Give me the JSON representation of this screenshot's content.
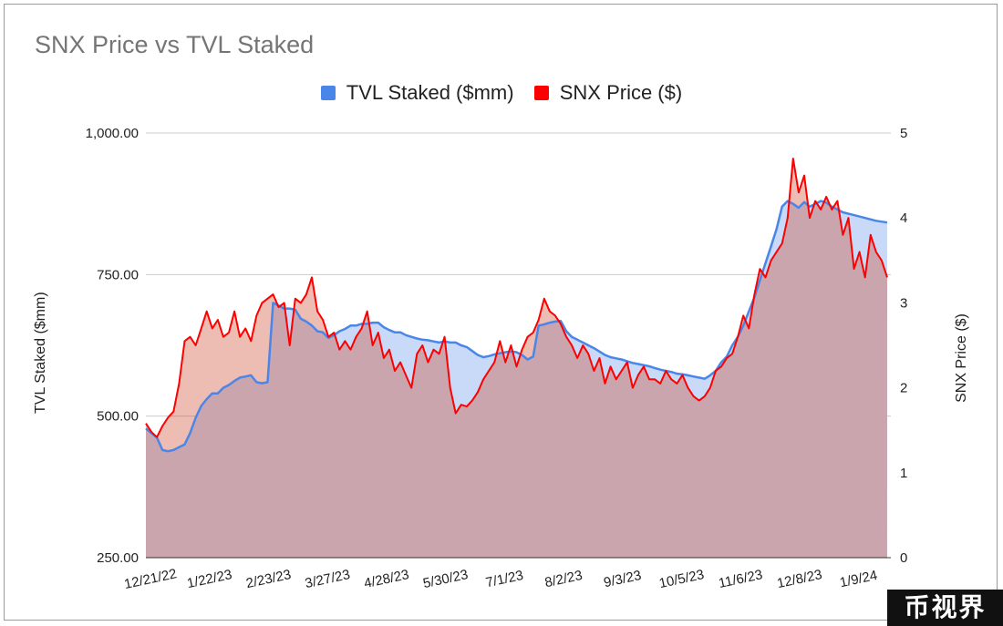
{
  "chart_data": {
    "type": "area",
    "title": "SNX Price vs TVL Staked",
    "x_ticks": [
      "12/21/22",
      "1/22/23",
      "2/23/23",
      "3/27/23",
      "4/28/23",
      "5/30/23",
      "7/1/23",
      "8/2/23",
      "9/3/23",
      "10/5/23",
      "11/6/23",
      "12/8/23",
      "1/9/24"
    ],
    "x_range": [
      "12/21/22",
      "1/29/24"
    ],
    "y_left": {
      "label": "TVL Staked ($mm)",
      "ticks": [
        "1,000.00",
        "750.00",
        "500.00",
        "250.00"
      ],
      "range": [
        250,
        1000
      ]
    },
    "y_right": {
      "label": "SNX Price ($)",
      "ticks": [
        "5",
        "4",
        "3",
        "2",
        "1",
        "0"
      ],
      "range": [
        0,
        5
      ]
    },
    "grid": true,
    "legend_position": "top",
    "series": [
      {
        "name": "TVL Staked ($mm)",
        "axis": "left",
        "color": "#4a86e8",
        "fill": "#c9daf8",
        "x": [
          0,
          3,
          6,
          9,
          12,
          15,
          18,
          21,
          24,
          27,
          30,
          33,
          36,
          39,
          42,
          45,
          48,
          51,
          54,
          57,
          60,
          63,
          66,
          69,
          72,
          75,
          78,
          81,
          84,
          87,
          90,
          93,
          96,
          99,
          102,
          105,
          108,
          111,
          114,
          117,
          120,
          123,
          126,
          129,
          132,
          135,
          138,
          141,
          144,
          147,
          150,
          153,
          156,
          159,
          162,
          165,
          168,
          171,
          174,
          177,
          180,
          183,
          186,
          189,
          192,
          195,
          198,
          201,
          204,
          207,
          210,
          213,
          216,
          219,
          222,
          225,
          228,
          231,
          234,
          237,
          240,
          243,
          246,
          249,
          252,
          255,
          258,
          261,
          264,
          267,
          270,
          273,
          276,
          279,
          282,
          285,
          288,
          291,
          294,
          297,
          300,
          303,
          306,
          309,
          312,
          315,
          318,
          321,
          324,
          327,
          330,
          333,
          336,
          339,
          342,
          345,
          348,
          351,
          354,
          357,
          360,
          363,
          366,
          369,
          372,
          375,
          378,
          384,
          390,
          396,
          402
        ],
        "values": [
          478,
          470,
          462,
          440,
          438,
          440,
          445,
          450,
          470,
          497,
          518,
          530,
          540,
          540,
          550,
          555,
          562,
          568,
          570,
          572,
          560,
          558,
          560,
          700,
          695,
          690,
          690,
          688,
          672,
          667,
          660,
          650,
          648,
          638,
          643,
          650,
          654,
          660,
          660,
          663,
          663,
          665,
          665,
          657,
          652,
          648,
          648,
          643,
          640,
          637,
          635,
          634,
          632,
          630,
          632,
          630,
          630,
          625,
          622,
          615,
          608,
          604,
          606,
          609,
          611,
          613,
          614,
          613,
          608,
          600,
          605,
          660,
          662,
          665,
          667,
          668,
          650,
          640,
          635,
          630,
          625,
          620,
          614,
          608,
          604,
          602,
          600,
          597,
          594,
          592,
          590,
          588,
          585,
          582,
          580,
          578,
          575,
          574,
          572,
          570,
          568,
          566,
          572,
          580,
          595,
          605,
          625,
          640,
          660,
          685,
          710,
          740,
          770,
          800,
          830,
          870,
          880,
          875,
          868,
          878,
          870,
          875,
          880,
          877,
          870,
          865,
          860,
          855,
          850,
          845,
          842
        ]
      },
      {
        "name": "SNX Price ($)",
        "axis": "right",
        "color": "#ff0000",
        "fill": "#e6b8af",
        "x": [
          0,
          3,
          6,
          9,
          12,
          15,
          18,
          21,
          24,
          27,
          30,
          33,
          36,
          39,
          42,
          45,
          48,
          51,
          54,
          57,
          60,
          63,
          66,
          69,
          72,
          75,
          78,
          81,
          84,
          87,
          90,
          93,
          96,
          99,
          102,
          105,
          108,
          111,
          114,
          117,
          120,
          123,
          126,
          129,
          132,
          135,
          138,
          141,
          144,
          147,
          150,
          153,
          156,
          159,
          162,
          165,
          168,
          171,
          174,
          177,
          180,
          183,
          186,
          189,
          192,
          195,
          198,
          201,
          204,
          207,
          210,
          213,
          216,
          219,
          222,
          225,
          228,
          231,
          234,
          237,
          240,
          243,
          246,
          249,
          252,
          255,
          258,
          261,
          264,
          267,
          270,
          273,
          276,
          279,
          282,
          285,
          288,
          291,
          294,
          297,
          300,
          303,
          306,
          309,
          312,
          315,
          318,
          321,
          324,
          327,
          330,
          333,
          336,
          339,
          342,
          345,
          348,
          351,
          354,
          357,
          360,
          363,
          366,
          369,
          372,
          375,
          378,
          381,
          384,
          387,
          390,
          393,
          396,
          399,
          402
        ],
        "values": [
          1.58,
          1.48,
          1.42,
          1.55,
          1.65,
          1.72,
          2.05,
          2.55,
          2.6,
          2.5,
          2.7,
          2.9,
          2.7,
          2.8,
          2.6,
          2.65,
          2.9,
          2.6,
          2.7,
          2.55,
          2.85,
          3.0,
          3.05,
          3.1,
          2.95,
          3.0,
          2.5,
          3.05,
          3.0,
          3.1,
          3.3,
          2.9,
          2.8,
          2.6,
          2.65,
          2.45,
          2.55,
          2.45,
          2.6,
          2.7,
          2.9,
          2.5,
          2.65,
          2.35,
          2.45,
          2.2,
          2.3,
          2.15,
          2.0,
          2.4,
          2.5,
          2.3,
          2.45,
          2.4,
          2.6,
          2.0,
          1.7,
          1.8,
          1.78,
          1.85,
          1.95,
          2.1,
          2.2,
          2.3,
          2.55,
          2.3,
          2.5,
          2.25,
          2.45,
          2.6,
          2.65,
          2.8,
          3.05,
          2.9,
          2.85,
          2.75,
          2.6,
          2.5,
          2.35,
          2.5,
          2.4,
          2.2,
          2.35,
          2.05,
          2.25,
          2.1,
          2.2,
          2.3,
          2.0,
          2.15,
          2.25,
          2.1,
          2.1,
          2.05,
          2.2,
          2.1,
          2.05,
          2.15,
          2.0,
          1.9,
          1.85,
          1.9,
          2.0,
          2.2,
          2.25,
          2.35,
          2.4,
          2.6,
          2.85,
          2.7,
          3.1,
          3.4,
          3.3,
          3.5,
          3.6,
          3.7,
          4.0,
          4.7,
          4.3,
          4.5,
          4.0,
          4.2,
          4.1,
          4.25,
          4.1,
          4.2,
          3.8,
          4.0,
          3.4,
          3.6,
          3.3,
          3.8,
          3.6,
          3.5,
          3.3
        ]
      }
    ]
  },
  "watermark": "币视界"
}
